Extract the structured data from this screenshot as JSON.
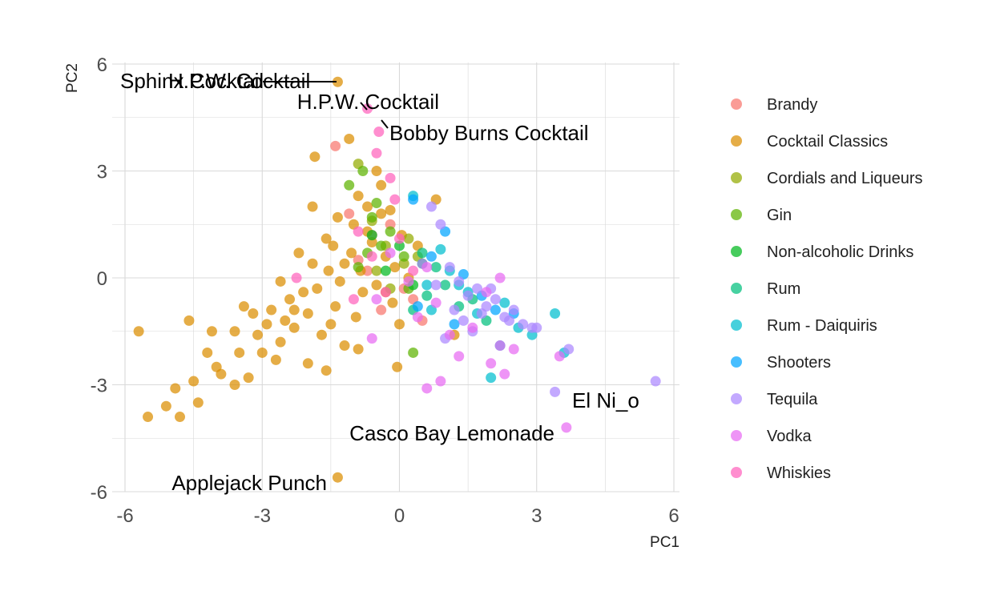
{
  "chart_data": {
    "type": "scatter",
    "title": "",
    "xlabel": "PC1",
    "ylabel": "PC2",
    "xlim": [
      -6.2,
      6.1
    ],
    "ylim": [
      -6.0,
      6.0
    ],
    "x_ticks": [
      -6,
      -3,
      0,
      3,
      6
    ],
    "y_ticks": [
      -6,
      -3,
      0,
      3,
      6
    ],
    "grid": true,
    "legend": "right",
    "series": [
      {
        "name": "Brandy",
        "color": "#F8766D",
        "points": [
          [
            -1.4,
            3.7
          ],
          [
            -0.6,
            1.2
          ],
          [
            -0.9,
            0.5
          ],
          [
            0.1,
            -0.3
          ],
          [
            -0.4,
            -0.9
          ],
          [
            0.3,
            -0.6
          ],
          [
            -1.1,
            1.8
          ],
          [
            0.5,
            -1.2
          ],
          [
            -0.7,
            0.2
          ],
          [
            -0.2,
            1.5
          ]
        ]
      },
      {
        "name": "Cocktail Classics",
        "color": "#DB8E00",
        "points": [
          [
            -1.35,
            5.5
          ],
          [
            -1.35,
            -5.6
          ],
          [
            -5.7,
            -1.5
          ],
          [
            -5.5,
            -3.9
          ],
          [
            -5.1,
            -3.6
          ],
          [
            -4.9,
            -3.1
          ],
          [
            -4.8,
            -3.9
          ],
          [
            -4.6,
            -1.2
          ],
          [
            -4.5,
            -2.9
          ],
          [
            -4.2,
            -2.1
          ],
          [
            -4.1,
            -1.5
          ],
          [
            -3.9,
            -2.7
          ],
          [
            -3.6,
            -1.5
          ],
          [
            -3.5,
            -2.1
          ],
          [
            -3.4,
            -0.8
          ],
          [
            -3.3,
            -2.8
          ],
          [
            -3.1,
            -1.6
          ],
          [
            -3.0,
            -2.1
          ],
          [
            -2.9,
            -1.3
          ],
          [
            -2.8,
            -0.9
          ],
          [
            -2.7,
            -2.3
          ],
          [
            -2.6,
            -1.8
          ],
          [
            -2.5,
            -1.2
          ],
          [
            -2.4,
            -0.6
          ],
          [
            -2.3,
            -1.4
          ],
          [
            -2.2,
            0.7
          ],
          [
            -2.1,
            -0.4
          ],
          [
            -2.0,
            -1.0
          ],
          [
            -1.9,
            0.4
          ],
          [
            -1.9,
            2.0
          ],
          [
            -1.85,
            3.4
          ],
          [
            -1.8,
            -0.3
          ],
          [
            -1.7,
            -1.6
          ],
          [
            -1.6,
            -2.6
          ],
          [
            -1.55,
            0.2
          ],
          [
            -1.5,
            -1.3
          ],
          [
            -1.45,
            0.9
          ],
          [
            -1.4,
            -0.8
          ],
          [
            -1.35,
            1.7
          ],
          [
            -1.3,
            -0.1
          ],
          [
            -1.2,
            -1.9
          ],
          [
            -1.1,
            3.9
          ],
          [
            -1.05,
            0.7
          ],
          [
            -1.0,
            1.5
          ],
          [
            -0.95,
            -1.1
          ],
          [
            -0.9,
            2.3
          ],
          [
            -0.85,
            0.2
          ],
          [
            -0.8,
            -0.4
          ],
          [
            -0.7,
            2.0
          ],
          [
            -0.6,
            1.0
          ],
          [
            -0.5,
            -0.2
          ],
          [
            -0.4,
            2.6
          ],
          [
            -0.3,
            0.6
          ],
          [
            -0.2,
            1.9
          ],
          [
            -0.15,
            -0.7
          ],
          [
            -0.1,
            0.3
          ],
          [
            -0.05,
            -2.5
          ],
          [
            0.05,
            1.2
          ],
          [
            0.2,
            0.0
          ],
          [
            0.4,
            0.9
          ],
          [
            0.8,
            2.2
          ],
          [
            1.2,
            -1.6
          ],
          [
            0.0,
            -1.3
          ],
          [
            -0.3,
            -0.4
          ],
          [
            -2.6,
            -0.1
          ],
          [
            -3.2,
            -1.0
          ],
          [
            -4.0,
            -2.5
          ],
          [
            -1.6,
            1.1
          ],
          [
            -2.0,
            -2.4
          ],
          [
            -0.5,
            3.0
          ],
          [
            -0.9,
            -2.0
          ],
          [
            -1.2,
            0.4
          ],
          [
            -2.3,
            -0.9
          ],
          [
            -3.6,
            -3.0
          ],
          [
            -4.4,
            -3.5
          ],
          [
            -0.7,
            1.3
          ],
          [
            -0.4,
            1.8
          ]
        ]
      },
      {
        "name": "Cordials and Liqueurs",
        "color": "#93AA00",
        "points": [
          [
            -0.9,
            3.2
          ],
          [
            -0.6,
            1.6
          ],
          [
            -0.3,
            0.9
          ],
          [
            0.1,
            0.4
          ],
          [
            -0.5,
            0.2
          ],
          [
            0.2,
            1.1
          ],
          [
            -0.2,
            -0.3
          ],
          [
            0.4,
            0.6
          ]
        ]
      },
      {
        "name": "Gin",
        "color": "#5DB300",
        "points": [
          [
            -1.1,
            2.6
          ],
          [
            -0.8,
            3.0
          ],
          [
            -0.6,
            1.7
          ],
          [
            -0.4,
            0.9
          ],
          [
            -0.9,
            0.3
          ],
          [
            -0.2,
            1.3
          ],
          [
            0.3,
            -2.1
          ],
          [
            0.1,
            0.6
          ],
          [
            -0.5,
            2.1
          ],
          [
            0.2,
            -0.3
          ],
          [
            -0.7,
            0.7
          ]
        ]
      },
      {
        "name": "Non-alcoholic Drinks",
        "color": "#00B81F",
        "points": [
          [
            -0.3,
            0.2
          ],
          [
            0.0,
            0.9
          ],
          [
            0.5,
            0.4
          ],
          [
            -0.6,
            1.2
          ],
          [
            0.3,
            -0.2
          ]
        ]
      },
      {
        "name": "Rum",
        "color": "#00BF7D",
        "points": [
          [
            0.6,
            -0.5
          ],
          [
            1.0,
            -0.2
          ],
          [
            1.3,
            -0.8
          ],
          [
            0.8,
            0.3
          ],
          [
            1.6,
            -0.6
          ],
          [
            0.3,
            -0.9
          ],
          [
            1.9,
            -1.2
          ],
          [
            0.5,
            0.7
          ]
        ]
      },
      {
        "name": "Rum - Daiquiris",
        "color": "#00BECF",
        "points": [
          [
            0.3,
            2.3
          ],
          [
            0.9,
            0.8
          ],
          [
            1.3,
            -0.2
          ],
          [
            1.7,
            -1.0
          ],
          [
            2.0,
            -2.8
          ],
          [
            2.2,
            -1.9
          ],
          [
            2.6,
            -1.4
          ],
          [
            2.9,
            -1.6
          ],
          [
            3.4,
            -1.0
          ],
          [
            3.6,
            -2.1
          ],
          [
            0.7,
            -0.9
          ],
          [
            1.5,
            -0.4
          ],
          [
            2.3,
            -0.7
          ],
          [
            1.1,
            0.2
          ],
          [
            0.6,
            -0.2
          ]
        ]
      },
      {
        "name": "Shooters",
        "color": "#00A5FF",
        "points": [
          [
            0.3,
            2.2
          ],
          [
            1.0,
            1.3
          ],
          [
            0.7,
            0.6
          ],
          [
            1.4,
            0.1
          ],
          [
            1.8,
            -0.5
          ],
          [
            2.1,
            -0.9
          ],
          [
            0.4,
            -0.8
          ],
          [
            1.2,
            -1.3
          ],
          [
            2.5,
            -1.0
          ]
        ]
      },
      {
        "name": "Tequila",
        "color": "#AC88FF",
        "points": [
          [
            0.7,
            2.0
          ],
          [
            0.9,
            1.5
          ],
          [
            1.1,
            0.3
          ],
          [
            1.3,
            -0.1
          ],
          [
            1.5,
            -0.5
          ],
          [
            1.7,
            -0.3
          ],
          [
            1.9,
            -0.8
          ],
          [
            2.1,
            -0.6
          ],
          [
            2.3,
            -1.1
          ],
          [
            2.5,
            -0.9
          ],
          [
            2.7,
            -1.3
          ],
          [
            2.9,
            -1.4
          ],
          [
            3.0,
            -1.4
          ],
          [
            3.4,
            -3.2
          ],
          [
            3.7,
            -2.0
          ],
          [
            5.6,
            -2.9
          ],
          [
            1.0,
            -1.7
          ],
          [
            0.8,
            -0.2
          ],
          [
            1.2,
            -0.9
          ],
          [
            1.6,
            -1.5
          ],
          [
            2.0,
            -0.3
          ],
          [
            2.4,
            -1.2
          ],
          [
            0.5,
            0.4
          ],
          [
            1.8,
            -1.0
          ],
          [
            1.4,
            -1.2
          ]
        ]
      },
      {
        "name": "Vodka",
        "color": "#E76BF3",
        "points": [
          [
            3.65,
            -4.2
          ],
          [
            -0.6,
            -1.7
          ],
          [
            0.6,
            -3.1
          ],
          [
            0.9,
            -2.9
          ],
          [
            1.3,
            -2.2
          ],
          [
            1.6,
            -1.4
          ],
          [
            2.0,
            -2.4
          ],
          [
            2.2,
            -1.9
          ],
          [
            2.3,
            -2.7
          ],
          [
            2.5,
            -2.0
          ],
          [
            3.5,
            -2.2
          ],
          [
            0.4,
            -1.1
          ],
          [
            0.8,
            -0.7
          ],
          [
            1.1,
            -1.6
          ],
          [
            1.9,
            -0.4
          ],
          [
            2.2,
            0.0
          ],
          [
            -0.2,
            0.7
          ],
          [
            0.2,
            -0.1
          ],
          [
            -0.5,
            -0.6
          ],
          [
            0.6,
            0.3
          ]
        ]
      },
      {
        "name": "Whiskies",
        "color": "#FF62BC",
        "points": [
          [
            -0.7,
            4.75
          ],
          [
            -0.45,
            4.1
          ],
          [
            -0.5,
            3.5
          ],
          [
            -0.2,
            2.8
          ],
          [
            -2.25,
            0.0
          ],
          [
            -0.9,
            1.3
          ],
          [
            -0.6,
            0.6
          ],
          [
            -0.3,
            -0.4
          ],
          [
            0.0,
            1.1
          ],
          [
            0.3,
            0.2
          ],
          [
            -1.0,
            -0.6
          ],
          [
            -0.1,
            2.2
          ]
        ]
      }
    ],
    "annotations": [
      {
        "label": "Sphinx Cocktail",
        "x": -1.35,
        "y": 5.5
      },
      {
        "label": "H.P.W. Cocktail",
        "x": -1.35,
        "y": 5.5
      },
      {
        "label": "H.P.W. Cocktail",
        "x": -0.7,
        "y": 4.75
      },
      {
        "label": "Bobby Burns Cocktail",
        "x": -0.45,
        "y": 4.1
      },
      {
        "label": "El Ni_o",
        "x": 5.6,
        "y": -2.9
      },
      {
        "label": "Casco Bay Lemonade",
        "x": 3.65,
        "y": -4.2
      },
      {
        "label": "Applejack Punch",
        "x": -1.35,
        "y": -5.6
      }
    ]
  }
}
